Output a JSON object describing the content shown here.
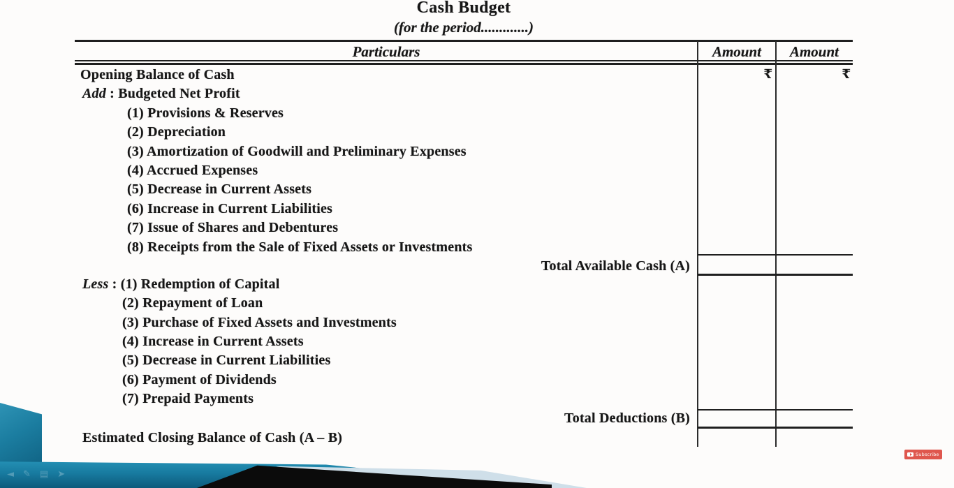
{
  "doc": {
    "title": "Cash Budget",
    "subtitle": "(for the period.............)"
  },
  "table": {
    "col_particulars": "Particulars",
    "col_amount_1": "Amount",
    "col_amount_2": "Amount",
    "currency_1": "₹",
    "currency_2": "₹",
    "rows": [
      {
        "kind": "plain",
        "label": "Opening Balance of Cash"
      },
      {
        "kind": "prefix",
        "prefix": "Add",
        "sep": " : ",
        "label": "Budgeted Net Profit"
      },
      {
        "kind": "add-item",
        "num": "(1) ",
        "label": "Provisions & Reserves"
      },
      {
        "kind": "add-item",
        "num": "(2) ",
        "label": "Depreciation"
      },
      {
        "kind": "add-item",
        "num": "(3) ",
        "label": "Amortization of Goodwill and Preliminary Expenses"
      },
      {
        "kind": "add-item",
        "num": "(4) ",
        "label": "Accrued Expenses"
      },
      {
        "kind": "add-item",
        "num": "(5) ",
        "label": "Decrease in Current Assets"
      },
      {
        "kind": "add-item",
        "num": "(6) ",
        "label": "Increase in Current Liabilities"
      },
      {
        "kind": "add-item",
        "num": "(7) ",
        "label": "Issue of Shares and Debentures"
      },
      {
        "kind": "add-item",
        "num": "(8) ",
        "label": "Receipts from the Sale of Fixed Assets or Investments"
      },
      {
        "kind": "total",
        "label": "Total Available Cash (A)"
      },
      {
        "kind": "prefix-num",
        "prefix": "Less",
        "sep": " : ",
        "num": "(1) ",
        "label": "Redemption of Capital"
      },
      {
        "kind": "less-item",
        "num": "(2) ",
        "label": "Repayment of Loan"
      },
      {
        "kind": "less-item",
        "num": "(3) ",
        "label": "Purchase of Fixed Assets and Investments"
      },
      {
        "kind": "less-item",
        "num": "(4) ",
        "label": "Increase in Current Assets"
      },
      {
        "kind": "less-item",
        "num": "(5) ",
        "label": "Decrease in Current Liabilities"
      },
      {
        "kind": "less-item",
        "num": "(6) ",
        "label": "Payment of Dividends"
      },
      {
        "kind": "less-item",
        "num": "(7) ",
        "label": "Prepaid Payments"
      },
      {
        "kind": "total",
        "label": "Total Deductions (B)"
      },
      {
        "kind": "plain-last",
        "label": "Estimated Closing Balance of Cash (A – B)"
      }
    ]
  },
  "overlay": {
    "subscribe_label": "Subscribe",
    "accent_red": "#df574e"
  },
  "decor": {
    "teal": "#187ba0",
    "control_icons": [
      {
        "name": "arrow-left-icon",
        "glyph": "◄"
      },
      {
        "name": "pen-icon",
        "glyph": "✎"
      },
      {
        "name": "grid-icon",
        "glyph": "▤"
      },
      {
        "name": "arrow-right-icon",
        "glyph": "➤"
      }
    ]
  }
}
